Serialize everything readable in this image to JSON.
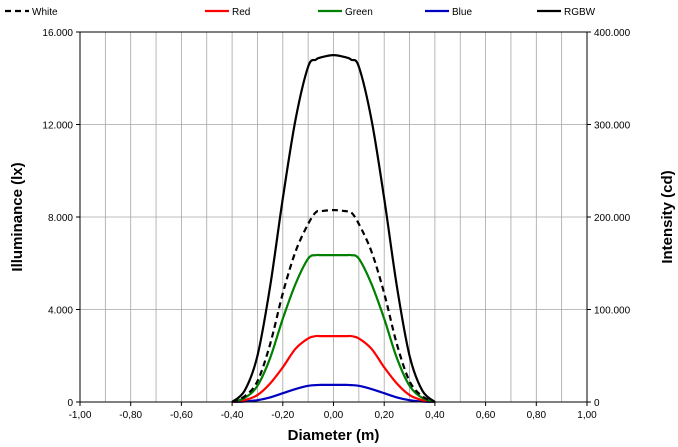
{
  "chart_data": {
    "type": "line",
    "title": "",
    "xlabel": "Diameter (m)",
    "ylabel_left": "Illuminance  (lx)",
    "ylabel_right": "Intensity  (cd)",
    "xlim": [
      -1.0,
      1.0
    ],
    "ylim_left": [
      0,
      16000
    ],
    "ylim_right": [
      0,
      400000
    ],
    "x_ticks": [
      -1.0,
      -0.8,
      -0.6,
      -0.4,
      -0.2,
      0.0,
      0.2,
      0.4,
      0.6,
      0.8,
      1.0
    ],
    "x_tick_labels": [
      "-1,00",
      "-0,80",
      "-0,60",
      "-0,40",
      "-0,20",
      "0,00",
      "0,20",
      "0,40",
      "0,60",
      "0,80",
      "1,00"
    ],
    "y_left_ticks": [
      0,
      4000,
      8000,
      12000,
      16000
    ],
    "y_left_tick_labels": [
      "0",
      "4.000",
      "8.000",
      "12.000",
      "16.000"
    ],
    "y_right_ticks": [
      0,
      100000,
      200000,
      300000,
      400000
    ],
    "y_right_tick_labels": [
      "0",
      "100.000",
      "200.000",
      "300.000",
      "400.000"
    ],
    "x_minor_step": 0.1,
    "grid": true,
    "legend_position": "top",
    "series": [
      {
        "name": "White",
        "color": "#000000",
        "dash": "dashed",
        "x": [
          -0.4,
          -0.35,
          -0.3,
          -0.25,
          -0.2,
          -0.15,
          -0.1,
          -0.07,
          -0.05,
          0.0,
          0.05,
          0.07,
          0.1,
          0.15,
          0.2,
          0.25,
          0.3,
          0.35,
          0.4
        ],
        "y": [
          0,
          250,
          900,
          2500,
          4700,
          6500,
          7700,
          8200,
          8250,
          8300,
          8250,
          8200,
          7700,
          6500,
          4700,
          2500,
          900,
          250,
          0
        ]
      },
      {
        "name": "Red",
        "color": "#ff0000",
        "dash": "solid",
        "x": [
          -0.4,
          -0.35,
          -0.3,
          -0.25,
          -0.2,
          -0.15,
          -0.1,
          -0.07,
          -0.05,
          0.0,
          0.05,
          0.07,
          0.1,
          0.15,
          0.2,
          0.25,
          0.3,
          0.35,
          0.4
        ],
        "y": [
          0,
          80,
          300,
          800,
          1500,
          2300,
          2750,
          2850,
          2850,
          2850,
          2850,
          2850,
          2750,
          2300,
          1500,
          800,
          300,
          80,
          0
        ]
      },
      {
        "name": "Green",
        "color": "#008000",
        "dash": "solid",
        "x": [
          -0.4,
          -0.35,
          -0.3,
          -0.25,
          -0.2,
          -0.15,
          -0.1,
          -0.07,
          -0.05,
          0.0,
          0.05,
          0.07,
          0.1,
          0.15,
          0.2,
          0.25,
          0.3,
          0.35,
          0.4
        ],
        "y": [
          0,
          180,
          700,
          1900,
          3600,
          5100,
          6200,
          6350,
          6350,
          6350,
          6350,
          6350,
          6200,
          5100,
          3600,
          1900,
          700,
          180,
          0
        ]
      },
      {
        "name": "Blue",
        "color": "#0000c0",
        "dash": "solid",
        "x": [
          -0.4,
          -0.35,
          -0.3,
          -0.25,
          -0.2,
          -0.15,
          -0.1,
          -0.07,
          -0.05,
          0.0,
          0.05,
          0.07,
          0.1,
          0.15,
          0.2,
          0.25,
          0.3,
          0.35,
          0.4
        ],
        "y": [
          0,
          20,
          80,
          200,
          380,
          560,
          700,
          730,
          740,
          740,
          740,
          730,
          700,
          560,
          380,
          200,
          80,
          20,
          0
        ]
      },
      {
        "name": "RGBW",
        "color": "#000000",
        "dash": "solid",
        "x": [
          -0.4,
          -0.35,
          -0.3,
          -0.25,
          -0.2,
          -0.15,
          -0.1,
          -0.07,
          -0.05,
          0.0,
          0.05,
          0.07,
          0.1,
          0.15,
          0.2,
          0.25,
          0.3,
          0.35,
          0.4
        ],
        "y": [
          0,
          500,
          2000,
          5000,
          8800,
          12200,
          14500,
          14800,
          14900,
          15000,
          14900,
          14800,
          14500,
          12200,
          8800,
          5000,
          2000,
          500,
          0
        ]
      }
    ]
  }
}
